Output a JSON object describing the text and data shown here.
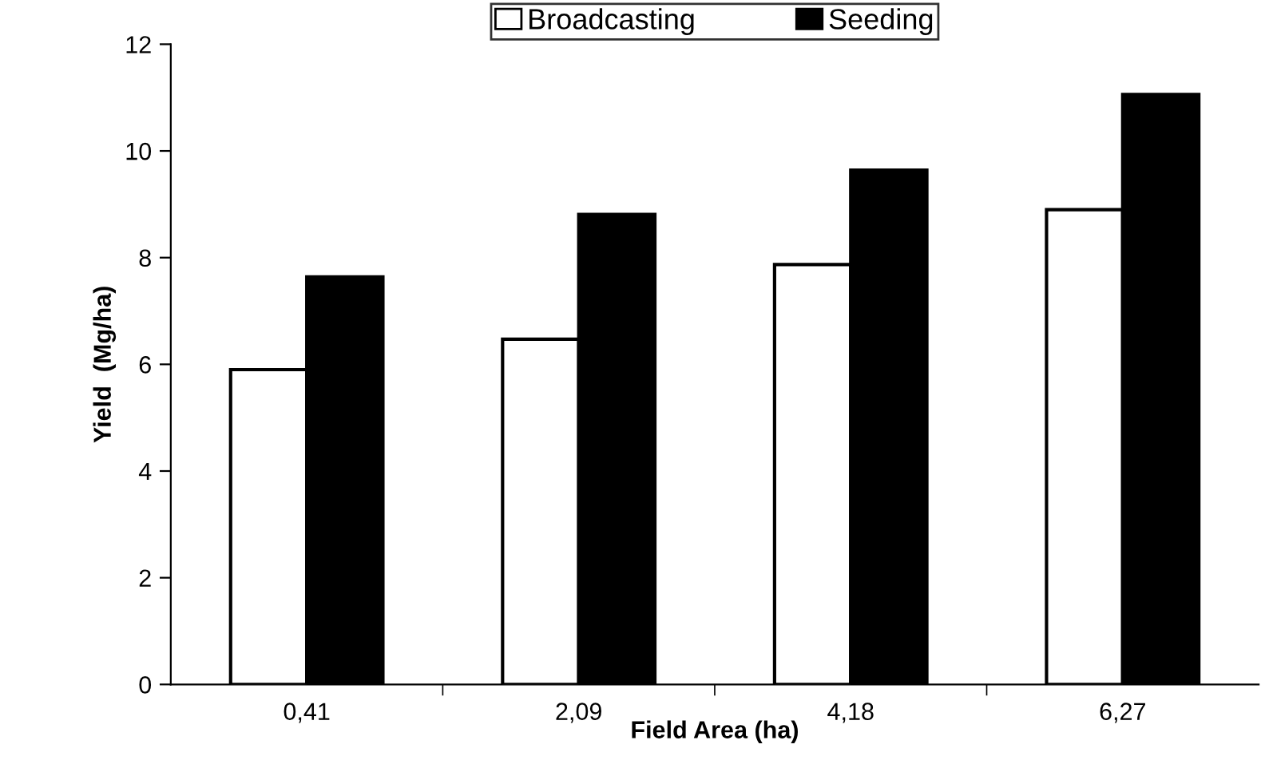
{
  "chart_data": {
    "type": "bar",
    "xlabel": "Field Area (ha)",
    "ylabel": "Yield  (Mg/ha)",
    "categories": [
      "0,41",
      "2,09",
      "4,18",
      "6,27"
    ],
    "series": [
      {
        "name": "Broadcasting",
        "color": "#ffffff",
        "values": [
          5.9,
          6.47,
          7.87,
          8.9
        ]
      },
      {
        "name": "Seeding",
        "color": "#000000",
        "values": [
          7.64,
          8.81,
          9.64,
          11.06
        ]
      }
    ],
    "ylim": [
      0,
      12
    ],
    "yticks": [
      0,
      2,
      4,
      6,
      8,
      10,
      12
    ],
    "grid": false,
    "legend": "top"
  }
}
